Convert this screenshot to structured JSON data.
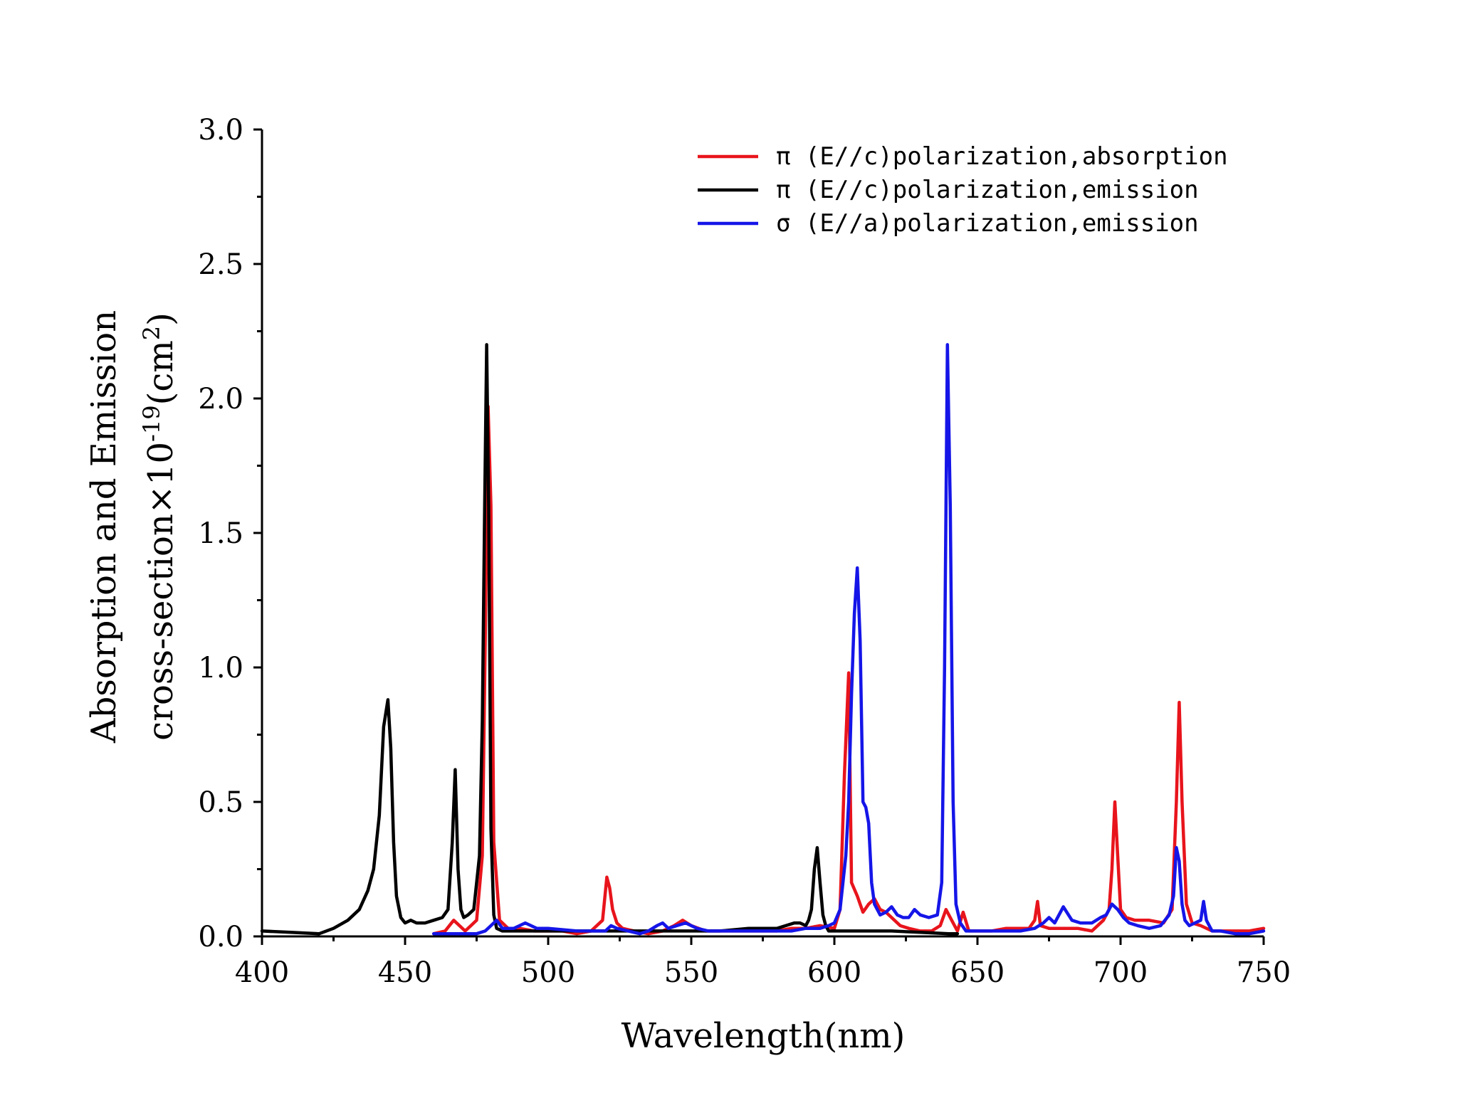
{
  "chart_data": {
    "type": "line",
    "title": "",
    "xlabel": "Wavelength(nm)",
    "ylabel_line1": "Absorption and Emission",
    "ylabel_line2_prefix": "cross-section×10",
    "ylabel_line2_exponent": "-19",
    "ylabel_line2_unit_open": "(cm",
    "ylabel_line2_unit_exponent": "2",
    "ylabel_line2_unit_close": ")",
    "xlim": [
      400,
      750
    ],
    "ylim": [
      0,
      3.0
    ],
    "xticks": [
      400,
      450,
      500,
      550,
      600,
      650,
      700,
      750
    ],
    "xtick_labels": [
      "400",
      "450",
      "500",
      "550",
      "600",
      "650",
      "700",
      "750"
    ],
    "yticks": [
      0,
      0.5,
      1.0,
      1.5,
      2.0,
      2.5,
      3.0
    ],
    "ytick_labels": [
      "0.0",
      "0.5",
      "1.0",
      "1.5",
      "2.0",
      "2.5",
      "3.0"
    ],
    "legend_position": "top-right",
    "grid": false,
    "series": [
      {
        "name": "π (E∕∕c)polarization,absorption",
        "color": "#e8141c",
        "x": [
          460,
          464,
          467,
          469,
          471,
          473,
          475,
          477,
          478,
          479,
          480,
          481,
          483,
          486,
          490,
          495,
          500,
          505,
          510,
          515,
          519,
          520.5,
          521.5,
          522.5,
          524,
          526,
          530,
          535,
          540,
          544,
          547,
          550,
          555,
          560,
          565,
          570,
          575,
          580,
          585,
          590,
          595,
          600,
          602,
          603.5,
          605,
          606,
          608,
          610,
          612,
          614,
          616,
          618,
          620,
          623,
          626,
          630,
          634,
          637,
          639,
          641,
          643,
          645,
          647,
          650,
          655,
          660,
          665,
          668,
          670,
          671,
          672,
          675,
          680,
          685,
          690,
          694,
          696,
          697,
          698,
          699,
          700,
          702,
          705,
          710,
          715,
          718,
          719.5,
          720.5,
          721.5,
          723,
          725,
          728,
          732,
          736,
          740,
          745,
          750
        ],
        "values": [
          0.01,
          0.02,
          0.06,
          0.04,
          0.02,
          0.04,
          0.06,
          0.3,
          1.1,
          1.97,
          1.6,
          0.35,
          0.06,
          0.03,
          0.03,
          0.02,
          0.02,
          0.02,
          0.01,
          0.02,
          0.06,
          0.22,
          0.18,
          0.1,
          0.05,
          0.03,
          0.02,
          0.01,
          0.02,
          0.04,
          0.06,
          0.04,
          0.02,
          0.02,
          0.02,
          0.02,
          0.02,
          0.02,
          0.03,
          0.03,
          0.04,
          0.03,
          0.1,
          0.6,
          0.98,
          0.2,
          0.15,
          0.09,
          0.12,
          0.14,
          0.1,
          0.09,
          0.07,
          0.04,
          0.03,
          0.02,
          0.02,
          0.04,
          0.1,
          0.06,
          0.02,
          0.09,
          0.02,
          0.02,
          0.02,
          0.03,
          0.03,
          0.03,
          0.06,
          0.13,
          0.04,
          0.03,
          0.03,
          0.03,
          0.02,
          0.06,
          0.1,
          0.25,
          0.5,
          0.3,
          0.1,
          0.07,
          0.06,
          0.06,
          0.05,
          0.1,
          0.5,
          0.87,
          0.5,
          0.12,
          0.05,
          0.04,
          0.02,
          0.02,
          0.02,
          0.02,
          0.03
        ]
      },
      {
        "name": "π (E∕∕c)polarization,emission",
        "color": "#000000",
        "x": [
          400,
          410,
          420,
          425,
          430,
          434,
          437,
          439,
          441,
          442.5,
          444,
          445,
          446,
          447,
          448.5,
          450,
          452,
          454,
          457,
          460,
          463,
          465,
          466.5,
          467.5,
          468.5,
          469.5,
          470.5,
          472,
          474,
          476,
          477,
          477.8,
          478.5,
          479.2,
          480,
          481,
          482,
          484,
          487,
          490,
          495,
          500,
          510,
          520,
          530,
          540,
          550,
          560,
          570,
          575,
          580,
          583,
          586,
          588,
          590,
          591,
          592,
          593,
          594,
          595,
          596,
          597,
          598,
          600,
          610,
          620,
          630,
          640,
          643
        ],
        "values": [
          0.02,
          0.015,
          0.01,
          0.03,
          0.06,
          0.1,
          0.17,
          0.25,
          0.45,
          0.78,
          0.88,
          0.7,
          0.35,
          0.15,
          0.07,
          0.05,
          0.06,
          0.05,
          0.05,
          0.06,
          0.07,
          0.1,
          0.35,
          0.62,
          0.25,
          0.1,
          0.07,
          0.08,
          0.1,
          0.3,
          0.8,
          1.6,
          2.2,
          1.6,
          0.4,
          0.08,
          0.03,
          0.02,
          0.02,
          0.02,
          0.02,
          0.02,
          0.02,
          0.02,
          0.02,
          0.02,
          0.02,
          0.02,
          0.03,
          0.03,
          0.03,
          0.04,
          0.05,
          0.05,
          0.04,
          0.06,
          0.1,
          0.25,
          0.33,
          0.2,
          0.08,
          0.04,
          0.02,
          0.02,
          0.02,
          0.02,
          0.015,
          0.01,
          0.01
        ]
      },
      {
        "name": "σ (E∕∕a)polarization,emission",
        "color": "#1515e8",
        "x": [
          460,
          465,
          470,
          475,
          478,
          480,
          482,
          484,
          486,
          488,
          490,
          492,
          494,
          496,
          500,
          510,
          520,
          522,
          524,
          528,
          532,
          535,
          538,
          540,
          542,
          545,
          548,
          552,
          556,
          560,
          565,
          570,
          575,
          580,
          585,
          590,
          595,
          598,
          600,
          602,
          604,
          605,
          606,
          607,
          608,
          609,
          610,
          611,
          612,
          613,
          614,
          616,
          618,
          620,
          622,
          624,
          626,
          628,
          630,
          633,
          636,
          637.5,
          638.5,
          639.5,
          640.5,
          641.5,
          642.5,
          644,
          646,
          650,
          655,
          660,
          665,
          670,
          673,
          675,
          677,
          680,
          683,
          686,
          690,
          693,
          695,
          697,
          699,
          701,
          703,
          706,
          710,
          714,
          717,
          718.5,
          719.5,
          720.5,
          721.5,
          722.5,
          724,
          726,
          728,
          729,
          730,
          732,
          735,
          740,
          745,
          750
        ],
        "values": [
          0.01,
          0.01,
          0.01,
          0.01,
          0.02,
          0.04,
          0.06,
          0.03,
          0.03,
          0.03,
          0.04,
          0.05,
          0.04,
          0.03,
          0.03,
          0.02,
          0.02,
          0.04,
          0.03,
          0.02,
          0.01,
          0.02,
          0.04,
          0.05,
          0.03,
          0.04,
          0.05,
          0.03,
          0.02,
          0.02,
          0.02,
          0.02,
          0.02,
          0.02,
          0.02,
          0.03,
          0.03,
          0.04,
          0.05,
          0.1,
          0.3,
          0.5,
          0.9,
          1.2,
          1.37,
          1.1,
          0.5,
          0.48,
          0.42,
          0.2,
          0.12,
          0.08,
          0.09,
          0.11,
          0.08,
          0.07,
          0.07,
          0.1,
          0.08,
          0.07,
          0.08,
          0.2,
          1.0,
          2.2,
          1.6,
          0.5,
          0.12,
          0.05,
          0.02,
          0.02,
          0.02,
          0.02,
          0.02,
          0.03,
          0.05,
          0.07,
          0.05,
          0.11,
          0.06,
          0.05,
          0.05,
          0.07,
          0.08,
          0.12,
          0.1,
          0.07,
          0.05,
          0.04,
          0.03,
          0.04,
          0.08,
          0.15,
          0.33,
          0.28,
          0.12,
          0.06,
          0.04,
          0.05,
          0.06,
          0.13,
          0.06,
          0.02,
          0.02,
          0.01,
          0.01,
          0.02
        ]
      }
    ]
  }
}
